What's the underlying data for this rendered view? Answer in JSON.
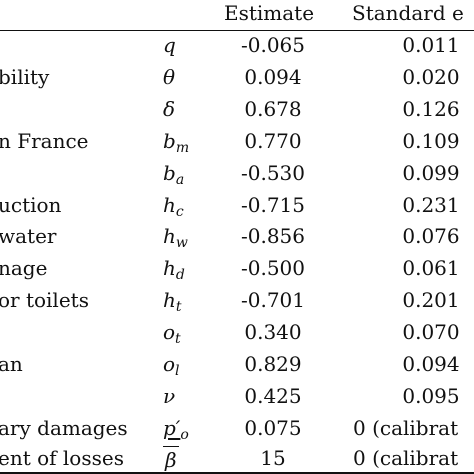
{
  "header": {
    "estimate": "Estimate",
    "standard_error": "Standard e"
  },
  "rows": [
    {
      "label": "",
      "sym": "q",
      "sub": "",
      "est": "-0.065",
      "se": "0.011"
    },
    {
      "label": "bility",
      "sym": "θ",
      "sub": "",
      "est": "0.094",
      "se": "0.020"
    },
    {
      "label": "",
      "sym": "δ",
      "sub": "",
      "est": "0.678",
      "se": "0.126"
    },
    {
      "label": "n France",
      "sym": "b",
      "sub": "m",
      "est": "0.770",
      "se": "0.109"
    },
    {
      "label": "",
      "sym": "b",
      "sub": "a",
      "est": "-0.530",
      "se": "0.099"
    },
    {
      "label": "uction",
      "sym": "h",
      "sub": "c",
      "est": "-0.715",
      "se": "0.231"
    },
    {
      "label": "water",
      "sym": "h",
      "sub": "w",
      "est": "-0.856",
      "se": "0.076"
    },
    {
      "label": "nage",
      "sym": "h",
      "sub": "d",
      "est": "-0.500",
      "se": "0.061"
    },
    {
      "label": "or toilets",
      "sym": "h",
      "sub": "t",
      "est": "-0.701",
      "se": "0.201"
    },
    {
      "label": "",
      "sym": "o",
      "sub": "t",
      "est": "0.340",
      "se": "0.070"
    },
    {
      "label": "an",
      "sym": "o",
      "sub": "l",
      "est": "0.829",
      "se": "0.094"
    },
    {
      "label": "",
      "sym": "ν",
      "sub": "",
      "est": "0.425",
      "se": "0.095"
    }
  ],
  "special_rows": {
    "damages": {
      "label": "ary damages",
      "sym": "p′",
      "sub": "o",
      "est": "0.075",
      "se": "0 (calibrat"
    },
    "losses": {
      "label": "ent of losses",
      "sym": "β",
      "est": "15",
      "se": "0 (calibrat"
    }
  }
}
